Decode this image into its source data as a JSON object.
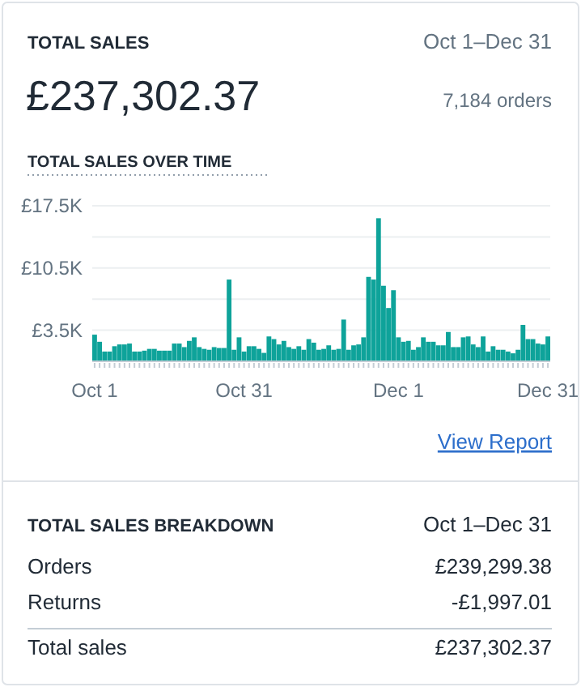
{
  "chart_data": [
    {
      "type": "other",
      "title": "TOTAL SALES",
      "annotations": [
        "Oct 1–Dec 31",
        "£237,302.37",
        "7,184 orders"
      ]
    },
    {
      "type": "bar",
      "title": "TOTAL SALES OVER TIME",
      "color": "#0ea39a",
      "grid": "y",
      "ylim": [
        0,
        17500
      ],
      "yticks": [
        {
          "value": 3500,
          "label": "£3.5K"
        },
        {
          "value": 7000,
          "label": null
        },
        {
          "value": 10500,
          "label": "£10.5K"
        },
        {
          "value": 14000,
          "label": null
        },
        {
          "value": 17500,
          "label": "£17.5K"
        }
      ],
      "categories": [
        "Oct 1",
        null,
        null,
        null,
        null,
        null,
        null,
        null,
        null,
        null,
        null,
        null,
        null,
        null,
        null,
        null,
        null,
        null,
        null,
        null,
        null,
        null,
        null,
        null,
        null,
        null,
        null,
        null,
        null,
        null,
        "Oct 31",
        null,
        null,
        null,
        null,
        null,
        null,
        null,
        null,
        null,
        null,
        null,
        null,
        null,
        null,
        null,
        null,
        null,
        null,
        null,
        null,
        null,
        null,
        null,
        null,
        null,
        null,
        null,
        null,
        null,
        null,
        "Dec 1",
        null,
        null,
        null,
        null,
        null,
        null,
        null,
        null,
        null,
        null,
        null,
        null,
        null,
        null,
        null,
        null,
        null,
        null,
        null,
        null,
        null,
        null,
        null,
        null,
        null,
        null,
        null,
        null,
        null,
        "Dec 31"
      ],
      "values": [
        3000,
        2200,
        1100,
        1100,
        1700,
        1900,
        1900,
        2000,
        1100,
        1100,
        1200,
        1400,
        1400,
        1200,
        1200,
        1200,
        2000,
        2000,
        1600,
        2300,
        2700,
        1600,
        1400,
        1300,
        1600,
        1500,
        1500,
        9200,
        1300,
        2700,
        1100,
        1700,
        1700,
        1400,
        950,
        2800,
        2500,
        1900,
        2300,
        1600,
        1400,
        1700,
        1300,
        2500,
        2100,
        1300,
        1400,
        1800,
        1300,
        1400,
        4700,
        1300,
        1800,
        1900,
        2700,
        9500,
        9200,
        16100,
        8500,
        6000,
        8000,
        2700,
        2200,
        2300,
        1300,
        1600,
        2700,
        2200,
        2200,
        1800,
        1800,
        3300,
        1600,
        1600,
        2700,
        2800,
        1900,
        1600,
        2800,
        1100,
        1700,
        1300,
        1300,
        1100,
        900,
        1300,
        4100,
        2500,
        2500,
        2000,
        1900,
        2800
      ],
      "annotations": [
        "View Report"
      ]
    },
    {
      "type": "other",
      "title": "TOTAL SALES BREAKDOWN",
      "annotations": [
        "Oct 1–Dec 31",
        "Orders",
        "£239,299.38",
        "Returns",
        "-£1,997.01",
        "Total sales",
        "£237,302.37"
      ]
    }
  ]
}
